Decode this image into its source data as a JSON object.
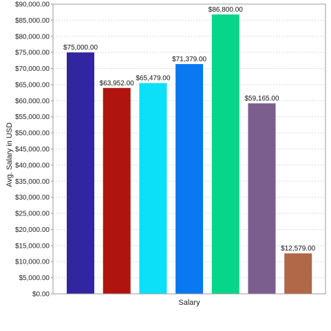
{
  "chart_data": {
    "type": "bar",
    "categories": [
      "",
      "",
      "",
      "",
      "",
      "",
      ""
    ],
    "values": [
      75000,
      63952,
      65479,
      71379,
      86800,
      59165,
      12579
    ],
    "value_labels": [
      "$75,000.00",
      "$63,952.00",
      "$65,479.00",
      "$71,379.00",
      "$86,800.00",
      "$59,165.00",
      "$12,579.00"
    ],
    "colors": [
      "#3125a0",
      "#b0140e",
      "#0ce0f8",
      "#0a78f0",
      "#05d68a",
      "#7c5e8e",
      "#b06848"
    ],
    "title": "",
    "xlabel": "Salary",
    "ylabel": "Avg. Salary in USD",
    "ylim": [
      0,
      90000
    ],
    "yticks": [
      0,
      5000,
      10000,
      15000,
      20000,
      25000,
      30000,
      35000,
      40000,
      45000,
      50000,
      55000,
      60000,
      65000,
      70000,
      75000,
      80000,
      85000,
      90000
    ],
    "ytick_labels": [
      "$0.00",
      "$5,000.00",
      "$10,000.00",
      "$15,000.00",
      "$20,000.00",
      "$25,000.00",
      "$30,000.00",
      "$35,000.00",
      "$40,000.00",
      "$45,000.00",
      "$50,000.00",
      "$55,000.00",
      "$60,000.00",
      "$65,000.00",
      "$70,000.00",
      "$75,000.00",
      "$80,000.00",
      "$85,000.00",
      "$90,000.00"
    ],
    "grid": true,
    "legend": "none"
  }
}
